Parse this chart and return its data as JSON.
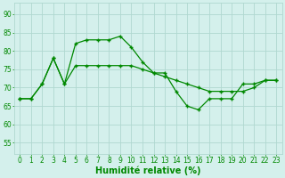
{
  "line1_x": [
    0,
    1,
    2,
    3,
    4,
    5,
    6,
    7,
    8,
    9,
    10,
    11,
    12,
    13,
    14,
    15,
    16,
    17,
    18,
    19,
    20,
    21,
    22,
    23
  ],
  "line1_y": [
    67,
    67,
    71,
    78,
    71,
    82,
    83,
    83,
    83,
    84,
    81,
    77,
    74,
    74,
    69,
    65,
    64,
    67,
    67,
    67,
    71,
    71,
    72,
    72
  ],
  "line2_x": [
    0,
    1,
    2,
    3,
    4,
    5,
    6,
    7,
    8,
    9,
    10,
    11,
    12,
    13,
    14,
    15,
    16,
    17,
    18,
    19,
    20,
    21,
    22,
    23
  ],
  "line2_y": [
    67,
    67,
    71,
    78,
    71,
    76,
    76,
    76,
    76,
    76,
    76,
    75,
    74,
    73,
    72,
    71,
    70,
    69,
    69,
    69,
    69,
    70,
    72,
    72
  ],
  "line_color": "#008800",
  "marker": "+",
  "markersize": 3.5,
  "linewidth": 0.9,
  "bg_color": "#d4f0ec",
  "grid_color": "#b0d8d0",
  "xlabel": "Humidité relative (%)",
  "xlabel_color": "#008800",
  "xlabel_fontsize": 7,
  "ylabel_ticks": [
    55,
    60,
    65,
    70,
    75,
    80,
    85,
    90
  ],
  "ylim": [
    52,
    93
  ],
  "xlim": [
    -0.5,
    23.5
  ],
  "tick_color": "#008800",
  "tick_fontsize": 5.5
}
